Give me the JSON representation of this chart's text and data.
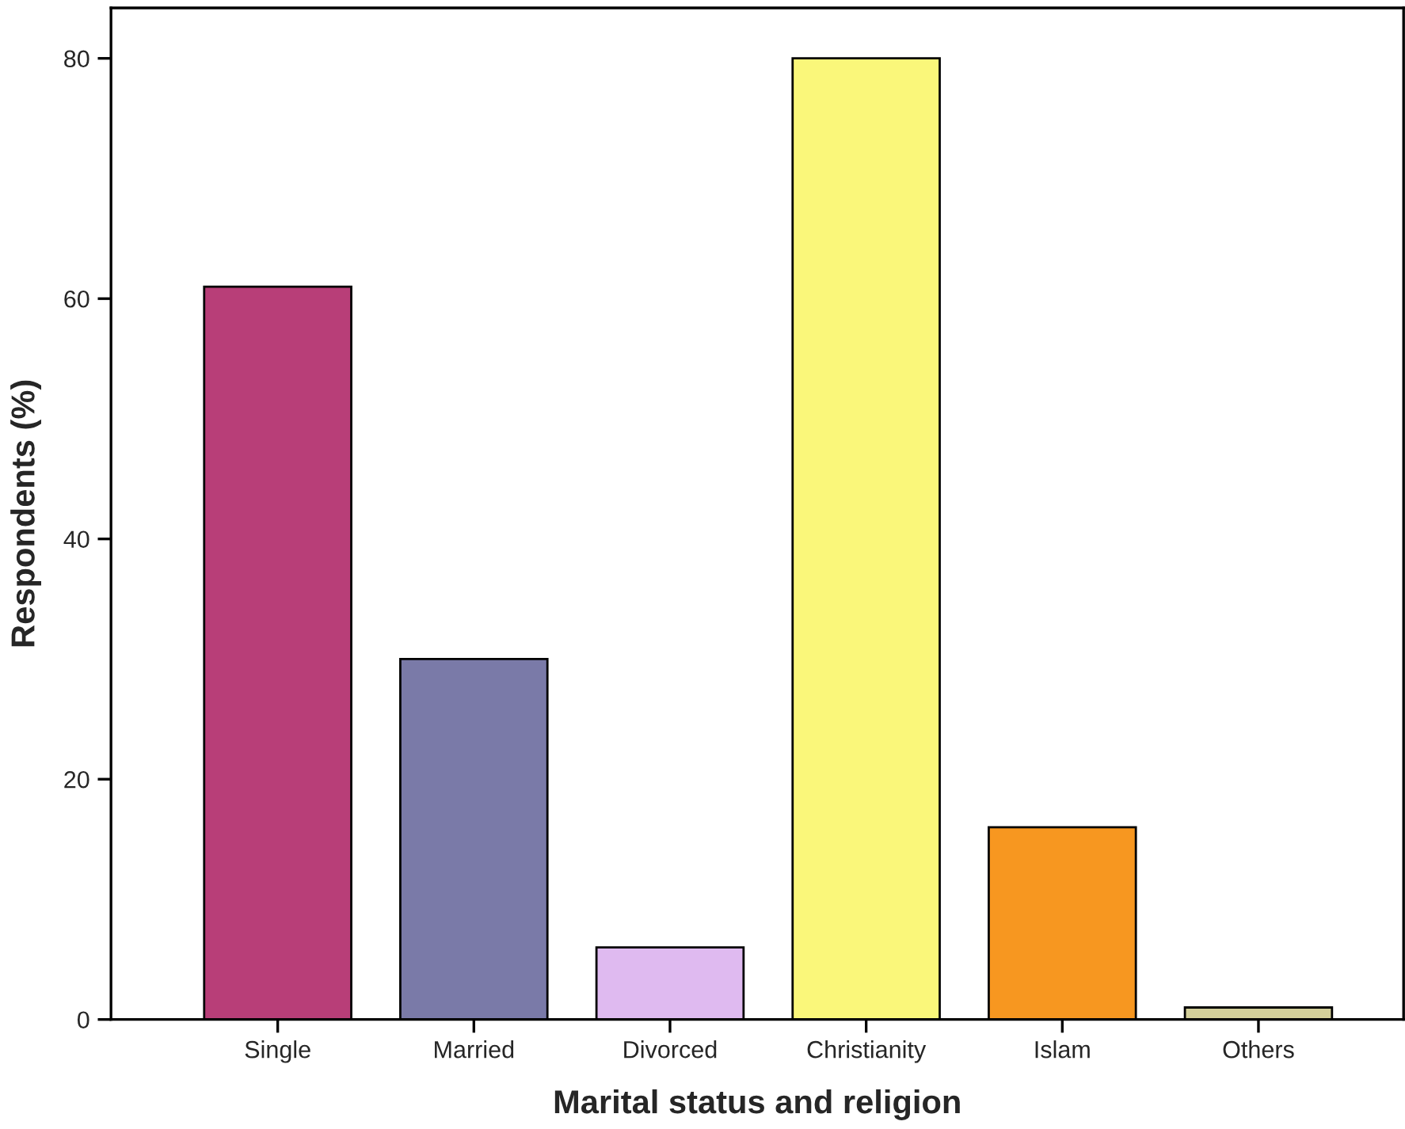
{
  "chart_data": {
    "type": "bar",
    "xlabel": "Marital status and religion",
    "ylabel": "Respondents (%)",
    "categories": [
      "Single",
      "Married",
      "Divorced",
      "Christianity",
      "Islam",
      "Others"
    ],
    "values": [
      61,
      30,
      6,
      80,
      16,
      1
    ],
    "colors": [
      "#b83e78",
      "#7a7aa8",
      "#dfbaf0",
      "#faf77a",
      "#f79720",
      "#d3cf9a"
    ],
    "ylim": [
      0,
      84.2
    ],
    "yticks": [
      0,
      20,
      40,
      60,
      80
    ],
    "grid": false
  }
}
